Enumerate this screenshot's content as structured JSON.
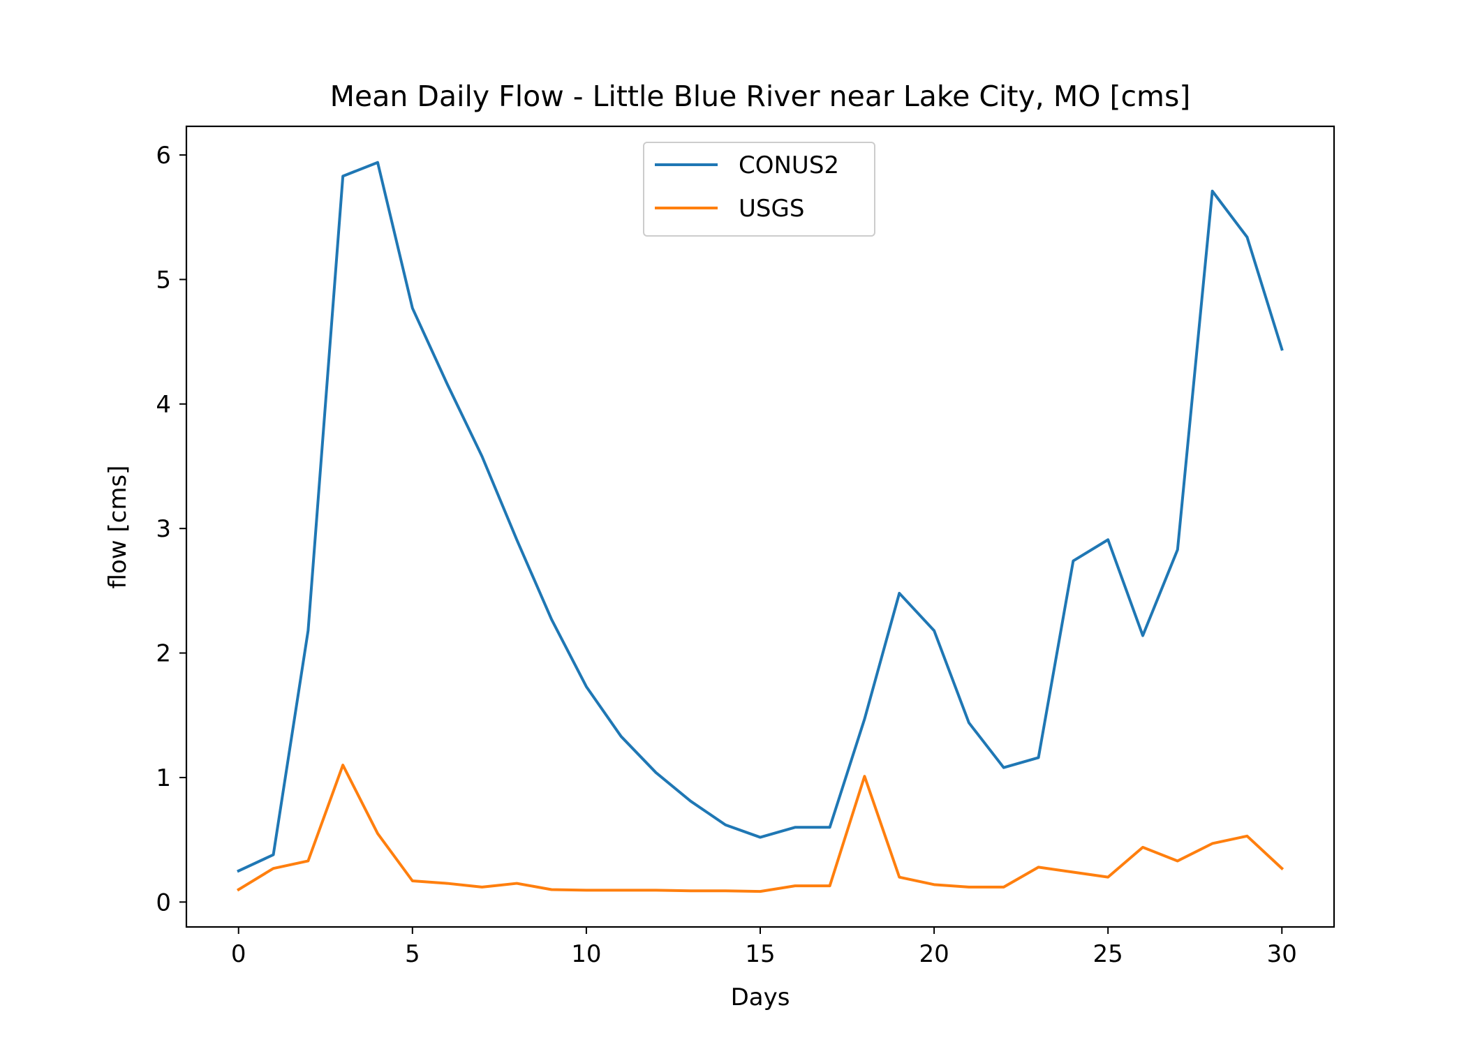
{
  "chart_data": {
    "type": "line",
    "title": "Mean Daily Flow - Little Blue River near Lake City, MO [cms]",
    "xlabel": "Days",
    "ylabel": "flow [cms]",
    "xlim": [
      -1.5,
      31.5
    ],
    "ylim": [
      -0.2,
      6.23
    ],
    "x_ticks": [
      0,
      5,
      10,
      15,
      20,
      25,
      30
    ],
    "y_ticks": [
      0,
      1,
      2,
      3,
      4,
      5,
      6
    ],
    "grid": false,
    "legend_position": "upper center",
    "x": [
      0,
      1,
      2,
      3,
      4,
      5,
      6,
      7,
      8,
      9,
      10,
      11,
      12,
      13,
      14,
      15,
      16,
      17,
      18,
      19,
      20,
      21,
      22,
      23,
      24,
      25,
      26,
      27,
      28,
      29,
      30
    ],
    "series": [
      {
        "name": "CONUS2",
        "color": "#1f77b4",
        "values": [
          0.25,
          0.38,
          2.18,
          5.83,
          5.94,
          4.77,
          4.16,
          3.58,
          2.91,
          2.27,
          1.73,
          1.33,
          1.04,
          0.81,
          0.62,
          0.52,
          0.6,
          0.6,
          1.47,
          2.48,
          2.18,
          1.44,
          1.08,
          1.16,
          2.74,
          2.91,
          2.14,
          2.83,
          5.71,
          5.34,
          4.44
        ]
      },
      {
        "name": "USGS",
        "color": "#ff7f0e",
        "values": [
          0.1,
          0.27,
          0.33,
          1.1,
          0.55,
          0.17,
          0.15,
          0.12,
          0.15,
          0.1,
          0.095,
          0.095,
          0.095,
          0.09,
          0.09,
          0.085,
          0.13,
          0.13,
          1.01,
          0.2,
          0.14,
          0.12,
          0.12,
          0.28,
          0.24,
          0.2,
          0.44,
          0.33,
          0.47,
          0.53,
          0.27
        ]
      }
    ]
  }
}
